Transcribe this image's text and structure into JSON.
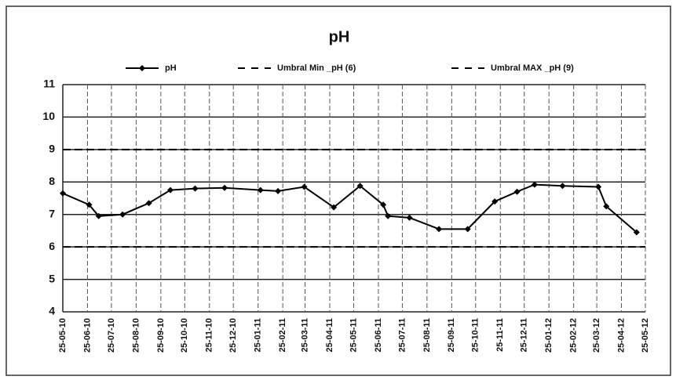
{
  "chart_data": {
    "type": "line",
    "title": "pH",
    "xlim": [
      "25-05-10",
      "25-05-12"
    ],
    "xticks": [
      "25-05-10",
      "25-06-10",
      "25-07-10",
      "25-08-10",
      "25-09-10",
      "25-10-10",
      "25-11-10",
      "25-12-10",
      "25-01-11",
      "25-02-11",
      "25-03-11",
      "25-04-11",
      "25-05-11",
      "25-06-11",
      "25-07-11",
      "25-08-11",
      "25-09-11",
      "25-10-11",
      "25-11-11",
      "25-12-11",
      "25-01-12",
      "25-02-12",
      "25-03-12",
      "25-04-12",
      "25-05-12"
    ],
    "ylim": [
      4,
      11
    ],
    "yticks": [
      4,
      5,
      6,
      7,
      8,
      9,
      10,
      11
    ],
    "grid": true,
    "series": [
      {
        "name": "pH",
        "color": "#000000",
        "x": [
          "25-05-10",
          "27-06-10",
          "09-07-10",
          "08-08-10",
          "10-09-10",
          "07-10-10",
          "07-11-10",
          "14-12-10",
          "28-01-11",
          "19-02-11",
          "24-03-11",
          "30-04-11",
          "02-06-11",
          "01-07-11",
          "07-07-11",
          "03-08-11",
          "09-09-11",
          "15-10-11",
          "18-11-11",
          "16-12-11",
          "07-01-12",
          "11-02-12",
          "27-03-12",
          "06-04-12",
          "14-05-12"
        ],
        "values": [
          7.65,
          7.3,
          6.95,
          7.0,
          7.35,
          7.75,
          7.8,
          7.82,
          7.75,
          7.72,
          7.85,
          7.22,
          7.88,
          7.3,
          6.95,
          6.9,
          6.55,
          6.55,
          7.4,
          7.7,
          7.92,
          7.88,
          7.85,
          7.25,
          6.45
        ]
      },
      {
        "name": "Umbral Min _pH (6)",
        "color": "#000000",
        "y": 6
      },
      {
        "name": "Umbral MAX _pH (9)",
        "color": "#000000",
        "y": 9
      }
    ]
  }
}
